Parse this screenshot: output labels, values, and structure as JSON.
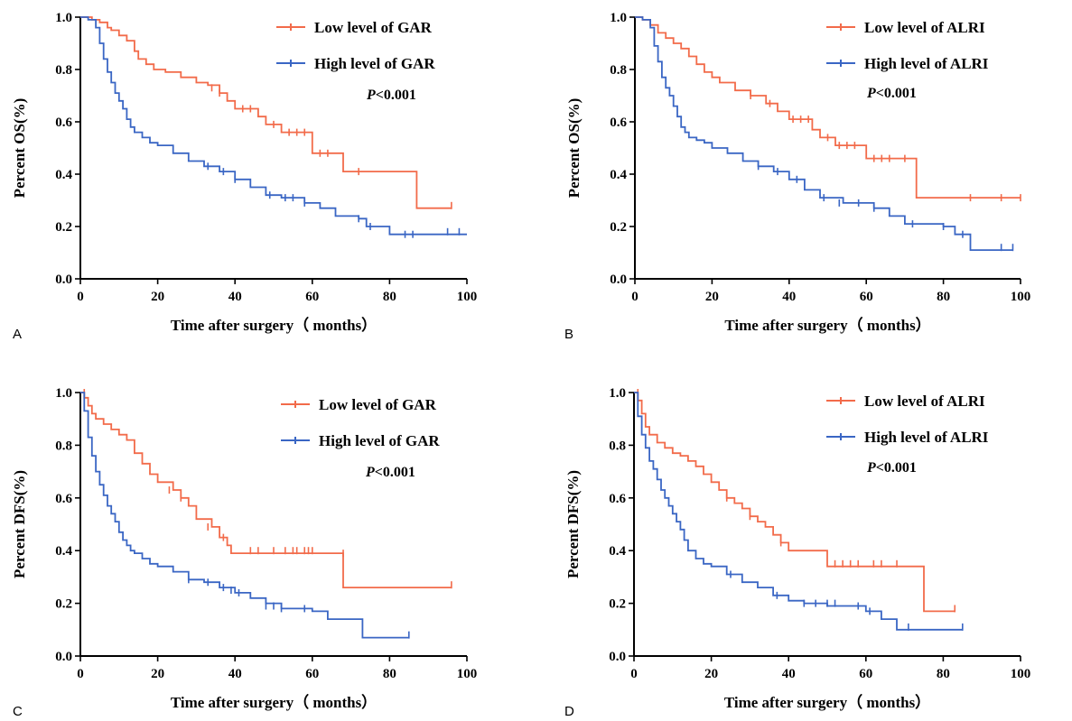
{
  "colors": {
    "low": "#f26b4a",
    "high": "#3a66c4"
  },
  "chart_data": [
    {
      "type": "line",
      "panel": "A",
      "xlabel": "Time after surgery（ months）",
      "ylabel": "Percent OS(%)",
      "xlim": [
        0,
        100
      ],
      "ylim": [
        0,
        1.0
      ],
      "xticks": [
        0,
        20,
        40,
        60,
        80,
        100
      ],
      "yticks": [
        0.0,
        0.2,
        0.4,
        0.6,
        0.8,
        1.0
      ],
      "xtick_labels": [
        "0",
        "20",
        "40",
        "60",
        "80",
        "100"
      ],
      "ytick_labels": [
        "0.0",
        "0.2",
        "0.4",
        "0.6",
        "0.8",
        "1.0"
      ],
      "p_prefix": "P",
      "p_rest": "<0.001",
      "series": [
        {
          "name": "Low level of GAR",
          "color_key": "low",
          "x": [
            0,
            3,
            5,
            7,
            8,
            10,
            12,
            14,
            15,
            17,
            19,
            22,
            26,
            30,
            33,
            36,
            38,
            40,
            46,
            48,
            52,
            60,
            68,
            80,
            87,
            96
          ],
          "y": [
            1.0,
            0.99,
            0.98,
            0.96,
            0.95,
            0.93,
            0.91,
            0.87,
            0.84,
            0.82,
            0.8,
            0.79,
            0.77,
            0.75,
            0.74,
            0.71,
            0.68,
            0.65,
            0.62,
            0.59,
            0.56,
            0.48,
            0.41,
            0.41,
            0.27,
            0.27
          ],
          "censor_x": [
            34,
            36,
            42,
            44,
            50,
            54,
            56,
            58,
            62,
            64,
            72,
            96
          ],
          "censor_y": [
            0.73,
            0.71,
            0.65,
            0.65,
            0.59,
            0.56,
            0.56,
            0.56,
            0.48,
            0.48,
            0.41,
            0.28
          ]
        },
        {
          "name": "High level of GAR",
          "color_key": "high",
          "x": [
            0,
            2,
            4,
            5,
            6,
            7,
            8,
            9,
            10,
            11,
            12,
            13,
            14,
            16,
            18,
            20,
            24,
            28,
            32,
            36,
            40,
            44,
            48,
            52,
            58,
            62,
            66,
            72,
            74,
            80,
            100
          ],
          "y": [
            1.0,
            0.99,
            0.96,
            0.9,
            0.84,
            0.79,
            0.75,
            0.71,
            0.68,
            0.65,
            0.61,
            0.58,
            0.56,
            0.54,
            0.52,
            0.51,
            0.48,
            0.45,
            0.43,
            0.41,
            0.38,
            0.35,
            0.32,
            0.31,
            0.29,
            0.27,
            0.24,
            0.23,
            0.2,
            0.17,
            0.17
          ],
          "censor_x": [
            33,
            37,
            40,
            49,
            53,
            55,
            58,
            72,
            75,
            84,
            86,
            95,
            98
          ],
          "censor_y": [
            0.43,
            0.41,
            0.38,
            0.32,
            0.31,
            0.31,
            0.29,
            0.23,
            0.2,
            0.17,
            0.17,
            0.18,
            0.18
          ]
        }
      ]
    },
    {
      "type": "line",
      "panel": "B",
      "xlabel": "Time after surgery（ months）",
      "ylabel": "Percent OS(%)",
      "xlim": [
        0,
        100
      ],
      "ylim": [
        0,
        1.0
      ],
      "xticks": [
        0,
        20,
        40,
        60,
        80,
        100
      ],
      "yticks": [
        0.0,
        0.2,
        0.4,
        0.6,
        0.8,
        1.0
      ],
      "xtick_labels": [
        "0",
        "20",
        "40",
        "60",
        "80",
        "100"
      ],
      "ytick_labels": [
        "0.0",
        "0.2",
        "0.4",
        "0.6",
        "0.8",
        "1.0"
      ],
      "p_prefix": "P",
      "p_rest": "<0.001",
      "series": [
        {
          "name": "Low level of ALRI",
          "color_key": "low",
          "x": [
            0,
            2,
            4,
            6,
            8,
            10,
            12,
            14,
            16,
            18,
            20,
            22,
            26,
            30,
            34,
            37,
            40,
            46,
            48,
            52,
            60,
            73,
            100
          ],
          "y": [
            1.0,
            0.99,
            0.97,
            0.94,
            0.92,
            0.9,
            0.88,
            0.85,
            0.82,
            0.79,
            0.77,
            0.75,
            0.72,
            0.7,
            0.67,
            0.64,
            0.61,
            0.57,
            0.54,
            0.51,
            0.46,
            0.31,
            0.31
          ],
          "censor_x": [
            30,
            35,
            41,
            43,
            45,
            50,
            53,
            55,
            57,
            62,
            64,
            66,
            70,
            87,
            95,
            100
          ],
          "censor_y": [
            0.7,
            0.67,
            0.61,
            0.61,
            0.61,
            0.54,
            0.51,
            0.51,
            0.51,
            0.46,
            0.46,
            0.46,
            0.46,
            0.31,
            0.31,
            0.31
          ]
        },
        {
          "name": "High level of ALRI",
          "color_key": "high",
          "x": [
            0,
            2,
            4,
            5,
            6,
            7,
            8,
            9,
            10,
            11,
            12,
            13,
            14,
            16,
            18,
            20,
            24,
            28,
            32,
            36,
            40,
            44,
            48,
            54,
            62,
            66,
            70,
            80,
            83,
            87,
            98
          ],
          "y": [
            1.0,
            0.99,
            0.96,
            0.89,
            0.83,
            0.77,
            0.73,
            0.7,
            0.66,
            0.62,
            0.58,
            0.56,
            0.54,
            0.53,
            0.52,
            0.5,
            0.48,
            0.45,
            0.43,
            0.41,
            0.38,
            0.34,
            0.31,
            0.29,
            0.27,
            0.24,
            0.21,
            0.2,
            0.17,
            0.11,
            0.11
          ],
          "censor_x": [
            32,
            37,
            42,
            49,
            53,
            58,
            62,
            72,
            80,
            85,
            95,
            98
          ],
          "censor_y": [
            0.43,
            0.41,
            0.38,
            0.31,
            0.29,
            0.29,
            0.27,
            0.21,
            0.2,
            0.17,
            0.12,
            0.12
          ]
        }
      ]
    },
    {
      "type": "line",
      "panel": "C",
      "xlabel": "Time after surgery（ months）",
      "ylabel": "Percent DFS(%)",
      "xlim": [
        0,
        100
      ],
      "ylim": [
        0,
        1.0
      ],
      "xticks": [
        0,
        20,
        40,
        60,
        80,
        100
      ],
      "yticks": [
        0.0,
        0.2,
        0.4,
        0.6,
        0.8,
        1.0
      ],
      "xtick_labels": [
        "0",
        "20",
        "40",
        "60",
        "80",
        "100"
      ],
      "ytick_labels": [
        "0.0",
        "0.2",
        "0.4",
        "0.6",
        "0.8",
        "1.0"
      ],
      "p_prefix": "P",
      "p_rest": "<0.001",
      "series": [
        {
          "name": "Low level of GAR",
          "color_key": "low",
          "x": [
            0,
            1,
            2,
            3,
            4,
            6,
            8,
            10,
            12,
            14,
            16,
            18,
            20,
            24,
            26,
            28,
            30,
            34,
            36,
            38,
            39,
            68,
            96
          ],
          "y": [
            1.0,
            0.98,
            0.95,
            0.92,
            0.9,
            0.88,
            0.86,
            0.84,
            0.82,
            0.77,
            0.73,
            0.69,
            0.66,
            0.63,
            0.6,
            0.57,
            0.52,
            0.49,
            0.45,
            0.42,
            0.39,
            0.26,
            0.26
          ],
          "censor_x": [
            1,
            23,
            26,
            33,
            37,
            44,
            46,
            50,
            53,
            55,
            56,
            58,
            59,
            60,
            68,
            96
          ],
          "censor_y": [
            1.0,
            0.63,
            0.6,
            0.49,
            0.45,
            0.4,
            0.4,
            0.4,
            0.4,
            0.4,
            0.4,
            0.4,
            0.4,
            0.4,
            0.39,
            0.27
          ]
        },
        {
          "name": "High level of GAR",
          "color_key": "high",
          "x": [
            0,
            1,
            2,
            3,
            4,
            5,
            6,
            7,
            8,
            9,
            10,
            11,
            12,
            13,
            14,
            16,
            18,
            20,
            24,
            28,
            32,
            36,
            40,
            44,
            48,
            52,
            60,
            64,
            73,
            85
          ],
          "y": [
            1.0,
            0.93,
            0.83,
            0.76,
            0.7,
            0.65,
            0.61,
            0.57,
            0.54,
            0.51,
            0.47,
            0.44,
            0.42,
            0.4,
            0.39,
            0.37,
            0.35,
            0.34,
            0.32,
            0.29,
            0.28,
            0.26,
            0.24,
            0.22,
            0.2,
            0.18,
            0.17,
            0.14,
            0.07,
            0.07
          ],
          "censor_x": [
            28,
            33,
            37,
            39,
            41,
            48,
            50,
            52,
            58,
            85
          ],
          "censor_y": [
            0.29,
            0.28,
            0.26,
            0.25,
            0.24,
            0.19,
            0.19,
            0.18,
            0.18,
            0.08
          ]
        }
      ]
    },
    {
      "type": "line",
      "panel": "D",
      "xlabel": "Time after surgery（ months）",
      "ylabel": "Percent DFS(%)",
      "xlim": [
        0,
        100
      ],
      "ylim": [
        0,
        1.0
      ],
      "xticks": [
        0,
        20,
        40,
        60,
        80,
        100
      ],
      "yticks": [
        0.0,
        0.2,
        0.4,
        0.6,
        0.8,
        1.0
      ],
      "xtick_labels": [
        "0",
        "20",
        "40",
        "60",
        "80",
        "100"
      ],
      "ytick_labels": [
        "0.0",
        "0.2",
        "0.4",
        "0.6",
        "0.8",
        "1.0"
      ],
      "p_prefix": "P",
      "p_rest": "<0.001",
      "series": [
        {
          "name": "Low level of ALRI",
          "color_key": "low",
          "x": [
            0,
            1,
            2,
            3,
            4,
            6,
            8,
            10,
            12,
            14,
            16,
            18,
            20,
            22,
            24,
            26,
            28,
            30,
            32,
            34,
            36,
            38,
            40,
            50,
            75,
            83
          ],
          "y": [
            1.0,
            0.97,
            0.92,
            0.87,
            0.84,
            0.81,
            0.79,
            0.77,
            0.76,
            0.74,
            0.72,
            0.69,
            0.66,
            0.63,
            0.6,
            0.58,
            0.56,
            0.53,
            0.51,
            0.49,
            0.46,
            0.43,
            0.4,
            0.34,
            0.17,
            0.17
          ],
          "censor_x": [
            1,
            24,
            30,
            38,
            52,
            54,
            56,
            58,
            62,
            64,
            68,
            83
          ],
          "censor_y": [
            1.0,
            0.6,
            0.53,
            0.43,
            0.35,
            0.35,
            0.35,
            0.35,
            0.35,
            0.35,
            0.35,
            0.18
          ]
        },
        {
          "name": "High level of ALRI",
          "color_key": "high",
          "x": [
            0,
            1,
            2,
            3,
            4,
            5,
            6,
            7,
            8,
            9,
            10,
            11,
            12,
            13,
            14,
            16,
            18,
            20,
            24,
            28,
            32,
            36,
            40,
            44,
            50,
            60,
            64,
            68,
            85
          ],
          "y": [
            1.0,
            0.91,
            0.84,
            0.79,
            0.74,
            0.71,
            0.67,
            0.63,
            0.6,
            0.57,
            0.54,
            0.51,
            0.48,
            0.44,
            0.4,
            0.37,
            0.35,
            0.34,
            0.31,
            0.28,
            0.26,
            0.23,
            0.21,
            0.2,
            0.19,
            0.17,
            0.14,
            0.1,
            0.1
          ],
          "censor_x": [
            25,
            37,
            44,
            47,
            50,
            52,
            58,
            61,
            71,
            85
          ],
          "censor_y": [
            0.31,
            0.23,
            0.2,
            0.2,
            0.2,
            0.2,
            0.19,
            0.17,
            0.11,
            0.11
          ]
        }
      ]
    }
  ]
}
